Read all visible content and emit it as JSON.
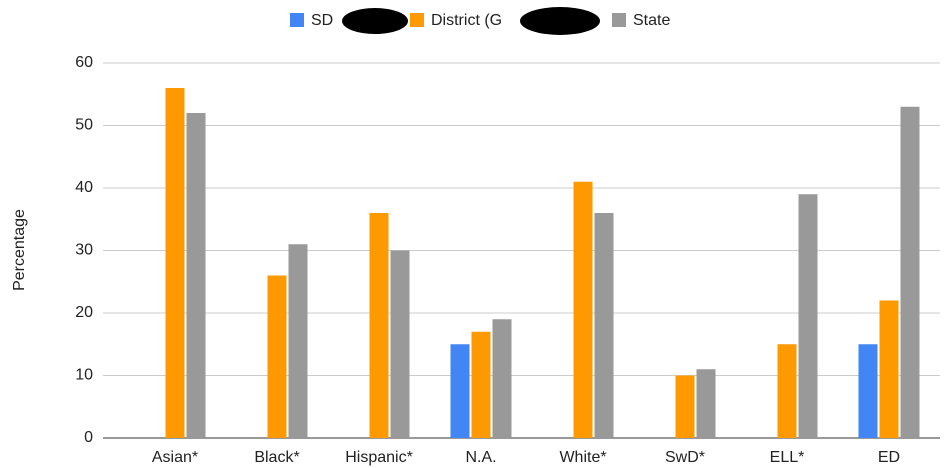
{
  "chart_data": {
    "type": "bar",
    "y_label": "Percentage",
    "categories": [
      "Asian*",
      "Black*",
      "Hispanic*",
      "N.A.",
      "White*",
      "SwD*",
      "ELL*",
      "ED"
    ],
    "series": [
      {
        "name": "SD",
        "color": "#4285f4",
        "values": [
          null,
          null,
          null,
          15,
          null,
          null,
          null,
          15
        ]
      },
      {
        "name": "District (G",
        "color": "#ff9900",
        "values": [
          56,
          26,
          36,
          17,
          41,
          10,
          15,
          22
        ]
      },
      {
        "name": "State",
        "color": "#999999",
        "values": [
          52,
          31,
          30,
          19,
          36,
          11,
          39,
          53
        ]
      }
    ],
    "ylim": [
      0,
      60
    ],
    "yticks": [
      0,
      10,
      20,
      30,
      40,
      50,
      60
    ],
    "grid": true,
    "legend": "top"
  }
}
